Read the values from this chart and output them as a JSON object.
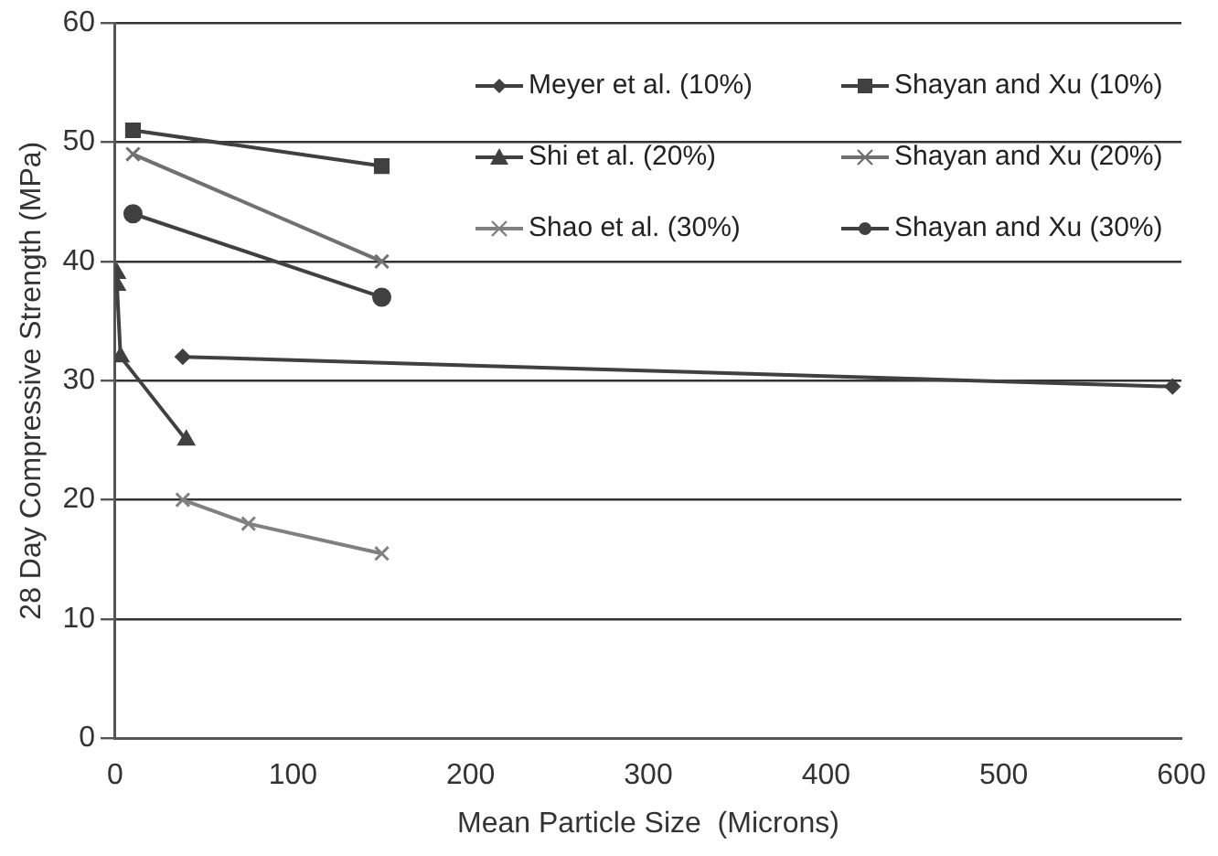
{
  "chart_data": {
    "type": "line",
    "xlabel": "Mean Particle Size  (Microns)",
    "ylabel": "28 Day Compressive Strength (MPa)",
    "xlim": [
      0,
      600
    ],
    "xticks": [
      0,
      100,
      200,
      300,
      400,
      500,
      600
    ],
    "ylim": [
      0,
      60
    ],
    "yticks": [
      0,
      10,
      20,
      30,
      40,
      50,
      60
    ],
    "grid": "y",
    "legend": "top right",
    "series": [
      {
        "name": "Meyer et al. (10%)",
        "color": "#404040",
        "marker": "diamond",
        "x": [
          38,
          595
        ],
        "values": [
          32,
          29.5
        ]
      },
      {
        "name": "Shayan and Xu (10%)",
        "color": "#404040",
        "marker": "square",
        "x": [
          10,
          150
        ],
        "values": [
          51,
          48
        ]
      },
      {
        "name": "Shi et al. (20%)",
        "color": "#404040",
        "marker": "triangle",
        "x": [
          1,
          1,
          3,
          40
        ],
        "values": [
          39,
          38,
          32,
          25
        ]
      },
      {
        "name": "Shayan and Xu (20%)",
        "color": "#707070",
        "marker": "cross",
        "x": [
          10,
          150
        ],
        "values": [
          49,
          40
        ]
      },
      {
        "name": "Shao et al. (30%)",
        "color": "#808080",
        "marker": "cross",
        "x": [
          38,
          75,
          150
        ],
        "values": [
          20,
          18,
          15.5
        ]
      },
      {
        "name": "Shayan and Xu (30%)",
        "color": "#404040",
        "marker": "circle",
        "x": [
          10,
          150
        ],
        "values": [
          44,
          37
        ]
      }
    ]
  }
}
